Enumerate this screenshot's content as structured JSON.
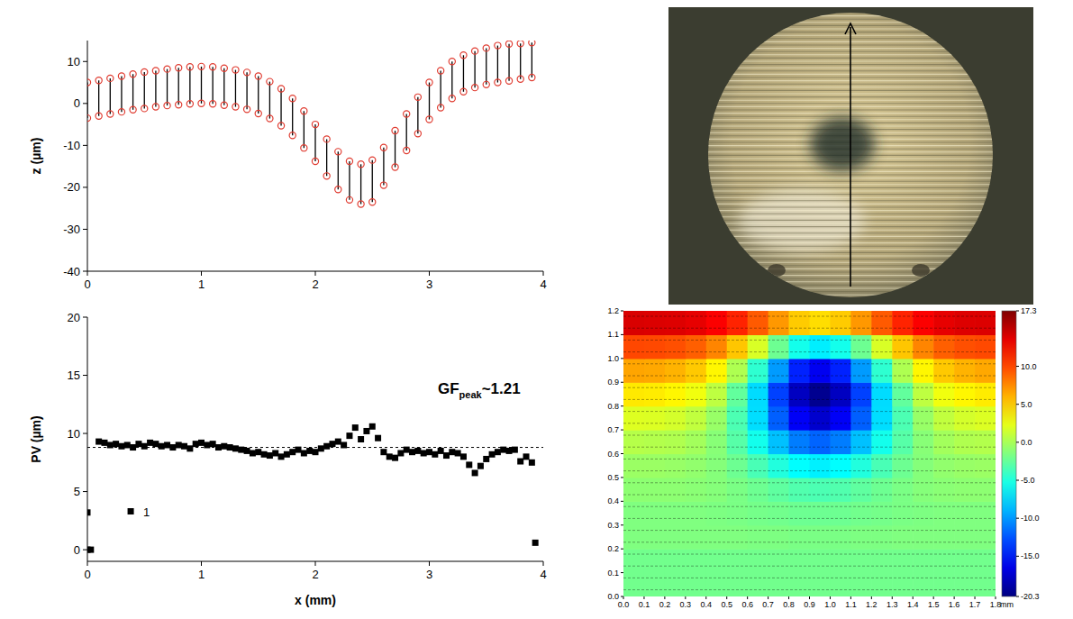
{
  "chart_data": [
    {
      "type": "scatter",
      "color": "#000000",
      "xlim": [
        0,
        4
      ],
      "xticks": [
        0,
        1,
        2,
        3,
        4
      ],
      "ylim": [
        -40,
        15
      ],
      "yticks": [
        -40,
        -30,
        -20,
        -10,
        0,
        10
      ],
      "ylabel": "z (µm)",
      "x": [
        0,
        0.1,
        0.2,
        0.3,
        0.4,
        0.5,
        0.6,
        0.7,
        0.8,
        0.9,
        1,
        1.1,
        1.2,
        1.3,
        1.4,
        1.5,
        1.6,
        1.7,
        1.8,
        1.9,
        2,
        2.1,
        2.2,
        2.3,
        2.4,
        2.5,
        2.6,
        2.7,
        2.8,
        2.9,
        3,
        3.1,
        3.2,
        3.3,
        3.4,
        3.5,
        3.6,
        3.7,
        3.8,
        3.9
      ],
      "series": [
        {
          "color": "#e03c31",
          "marker": "circle",
          "values": [
            5.0,
            5.5,
            6.0,
            6.5,
            7.0,
            7.5,
            7.8,
            8.2,
            8.5,
            8.7,
            8.8,
            8.7,
            8.4,
            8.0,
            7.4,
            6.5,
            5.2,
            3.5,
            1.2,
            -1.8,
            -5.0,
            -8.5,
            -11.5,
            -13.8,
            -14.5,
            -13.5,
            -10.5,
            -6.5,
            -2.5,
            1.5,
            5.0,
            7.8,
            10.0,
            11.5,
            12.5,
            13.2,
            13.8,
            14.2,
            14.3,
            14.5
          ]
        },
        {
          "color": "#e03c31",
          "marker": "circle",
          "values": [
            -3.5,
            -3.0,
            -2.5,
            -2.0,
            -1.5,
            -1.2,
            -0.8,
            -0.5,
            -0.3,
            -0.1,
            0.0,
            -0.1,
            -0.4,
            -0.8,
            -1.4,
            -2.4,
            -3.6,
            -5.3,
            -7.6,
            -10.6,
            -13.8,
            -17.3,
            -20.5,
            -23.0,
            -24.0,
            -23.5,
            -19.5,
            -15.2,
            -11.2,
            -7.2,
            -3.8,
            -1.0,
            1.2,
            2.8,
            3.8,
            4.5,
            5.0,
            5.4,
            5.8,
            6.2
          ]
        }
      ]
    },
    {
      "type": "scatter",
      "xlim": [
        0,
        4
      ],
      "xticks": [
        0,
        1,
        2,
        3,
        4
      ],
      "ylim": [
        -1,
        20
      ],
      "yticks": [
        0,
        5,
        10,
        15,
        20
      ],
      "xlabel": "x (mm)",
      "ylabel": "PV (µm)",
      "reference_line": {
        "value": 8.8,
        "line_style": "dashed"
      },
      "point_label": "1",
      "annotation": {
        "text": "GF",
        "subscript": "peak",
        "suffix": "~1.21"
      },
      "series": [
        {
          "color": "#000000",
          "marker": "square",
          "x": [
            0.1,
            0.15,
            0.2,
            0.25,
            0.3,
            0.35,
            0.4,
            0.45,
            0.5,
            0.55,
            0.6,
            0.65,
            0.7,
            0.75,
            0.8,
            0.85,
            0.9,
            0.95,
            1,
            1.05,
            1.1,
            1.15,
            1.2,
            1.25,
            1.3,
            1.35,
            1.4,
            1.45,
            1.5,
            1.55,
            1.6,
            1.65,
            1.7,
            1.75,
            1.8,
            1.85,
            1.9,
            1.95,
            2,
            2.05,
            2.1,
            2.15,
            2.2,
            2.25,
            2.3,
            2.35,
            2.4,
            2.45,
            2.5,
            2.55,
            2.6,
            2.65,
            2.7,
            2.75,
            2.8,
            2.85,
            2.9,
            2.95,
            3,
            3.05,
            3.1,
            3.15,
            3.2,
            3.25,
            3.3,
            3.35,
            3.4,
            3.45,
            3.5,
            3.55,
            3.6,
            3.65,
            3.7,
            3.75,
            3.8,
            3.85,
            3.9
          ],
          "values": [
            9.3,
            9.2,
            9.0,
            9.1,
            8.9,
            9.0,
            8.8,
            9.1,
            8.9,
            9.2,
            9.1,
            8.9,
            9.0,
            8.8,
            9.0,
            8.9,
            8.7,
            9.1,
            9.2,
            9.0,
            9.1,
            8.8,
            8.9,
            8.8,
            8.7,
            8.6,
            8.5,
            8.3,
            8.4,
            8.2,
            8.1,
            8.3,
            8.0,
            8.2,
            8.4,
            8.6,
            8.3,
            8.5,
            8.4,
            8.7,
            8.9,
            9.1,
            9.3,
            9.0,
            9.8,
            10.5,
            9.5,
            10.2,
            10.6,
            9.6,
            8.4,
            8.0,
            7.9,
            8.3,
            8.6,
            8.4,
            8.5,
            8.3,
            8.4,
            8.2,
            8.5,
            8.1,
            8.4,
            8.3,
            8.0,
            7.3,
            6.6,
            7.2,
            7.8,
            8.2,
            8.4,
            8.6,
            8.5,
            8.6,
            7.6,
            8.0,
            7.5
          ]
        },
        {
          "color": "#000000",
          "marker": "square",
          "x": [
            0,
            0,
            0.03,
            0.38,
            3.93
          ],
          "values": [
            3.2,
            0,
            0,
            3.3,
            0.6
          ]
        }
      ]
    },
    {
      "type": "heatmap",
      "xlim": [
        0,
        1.8
      ],
      "ylim": [
        0,
        1.2
      ],
      "xlabel": "mm",
      "xticks": [
        {
          "value": 0,
          "label": "0.0"
        },
        {
          "value": 0.1,
          "label": "0.1"
        },
        {
          "value": 0.2,
          "label": "0.2"
        },
        {
          "value": 0.3,
          "label": "0.3"
        },
        {
          "value": 0.4,
          "label": "0.4"
        },
        {
          "value": 0.5,
          "label": "0.5"
        },
        {
          "value": 0.6,
          "label": "0.6"
        },
        {
          "value": 0.7,
          "label": "0.7"
        },
        {
          "value": 0.8,
          "label": "0.8"
        },
        {
          "value": 0.9,
          "label": "0.9"
        },
        {
          "value": 1,
          "label": "1.0"
        },
        {
          "value": 1.1,
          "label": "1.1"
        },
        {
          "value": 1.2,
          "label": "1.2"
        },
        {
          "value": 1.3,
          "label": "1.3"
        },
        {
          "value": 1.4,
          "label": "1.4"
        },
        {
          "value": 1.5,
          "label": "1.5"
        },
        {
          "value": 1.6,
          "label": "1.6"
        },
        {
          "value": 1.7,
          "label": "1.7"
        },
        {
          "value": 1.8,
          "label": "1.8"
        }
      ],
      "yticks": [
        {
          "value": 0,
          "label": "0.0"
        },
        {
          "value": 0.1,
          "label": "0.1"
        },
        {
          "value": 0.2,
          "label": "0.2"
        },
        {
          "value": 0.3,
          "label": "0.3"
        },
        {
          "value": 0.4,
          "label": "0.4"
        },
        {
          "value": 0.5,
          "label": "0.5"
        },
        {
          "value": 0.6,
          "label": "0.6"
        },
        {
          "value": 0.7,
          "label": "0.7"
        },
        {
          "value": 0.8,
          "label": "0.8"
        },
        {
          "value": 0.9,
          "label": "0.9"
        },
        {
          "value": 1,
          "label": "1.0"
        },
        {
          "value": 1.1,
          "label": "1.1"
        },
        {
          "value": 1.2,
          "label": "1.2"
        }
      ],
      "cells": [
        [
          -2,
          -2,
          -2,
          -2,
          -2,
          -2,
          -2,
          -2,
          -2,
          -2,
          -2,
          -2,
          -2,
          -2,
          -2,
          -2,
          -2,
          -2
        ],
        [
          -2,
          -2,
          -2,
          -2,
          -2,
          -2,
          -2,
          -2,
          -2,
          -2,
          -2,
          -2,
          -2,
          -2,
          -2,
          -2,
          -2,
          -2
        ],
        [
          -1.5,
          -1.5,
          -1.5,
          -1.5,
          -1.5,
          -1.5,
          -1.6,
          -1.6,
          -1.7,
          -1.7,
          -1.7,
          -1.6,
          -1.6,
          -1.5,
          -1.5,
          -1.5,
          -1.5,
          -1.5
        ],
        [
          -1.5,
          -1.5,
          -1.5,
          -1.5,
          -1.6,
          -1.7,
          -1.9,
          -2.0,
          -2.2,
          -2.2,
          -2.2,
          -2.0,
          -1.9,
          -1.7,
          -1.6,
          -1.5,
          -1.5,
          -1.5
        ],
        [
          -1.0,
          -1.0,
          -1.0,
          -1.1,
          -1.3,
          -1.7,
          -2.2,
          -2.7,
          -3.2,
          -3.4,
          -3.2,
          -2.7,
          -2.2,
          -1.7,
          -1.3,
          -1.1,
          -1.0,
          -1.0
        ],
        [
          -0.5,
          -0.5,
          -0.6,
          -0.8,
          -1.3,
          -2.2,
          -3.5,
          -5.0,
          -6.2,
          -6.7,
          -6.2,
          -5.0,
          -3.5,
          -2.2,
          -1.3,
          -0.8,
          -0.6,
          -0.5
        ],
        [
          0.5,
          0.4,
          0.3,
          -0.2,
          -1.2,
          -3.0,
          -5.5,
          -8.5,
          -11.0,
          -11.9,
          -11.0,
          -8.5,
          -5.5,
          -3.0,
          -1.2,
          -0.2,
          0.3,
          0.4
        ],
        [
          2.0,
          1.9,
          1.6,
          0.9,
          -0.6,
          -3.4,
          -7.4,
          -12.1,
          -15.9,
          -17.4,
          -15.9,
          -12.1,
          -7.4,
          -3.4,
          -0.6,
          0.9,
          1.6,
          1.9
        ],
        [
          4.0,
          3.9,
          3.5,
          2.7,
          0.8,
          -2.6,
          -7.5,
          -13.2,
          -17.9,
          -19.7,
          -17.9,
          -13.2,
          -7.5,
          -2.6,
          0.8,
          2.7,
          3.5,
          3.9
        ],
        [
          6.5,
          6.4,
          6.0,
          5.2,
          3.5,
          0.2,
          -4.5,
          -9.9,
          -14.4,
          -16.1,
          -14.4,
          -9.9,
          -4.5,
          0.2,
          3.5,
          5.2,
          6.0,
          6.4
        ],
        [
          10.0,
          9.9,
          9.7,
          9.1,
          7.7,
          5.3,
          1.8,
          -2.2,
          -5.5,
          -6.8,
          -5.5,
          -2.2,
          1.8,
          5.3,
          7.7,
          9.1,
          9.7,
          9.9
        ],
        [
          14.0,
          13.9,
          13.8,
          13.5,
          12.7,
          11.3,
          9.3,
          7.0,
          5.1,
          4.4,
          5.1,
          7.0,
          9.3,
          11.3,
          12.7,
          13.5,
          13.8,
          13.9
        ]
      ],
      "color_scale": {
        "range": [
          -20.3,
          17.3
        ],
        "ticks": [
          17.3,
          {
            "value": 10,
            "label": "10.0"
          },
          {
            "value": 5,
            "label": "5.0"
          },
          {
            "value": 0,
            "label": "0.0"
          },
          {
            "value": -5,
            "label": "-5.0"
          },
          {
            "value": -10,
            "label": "-10.0"
          },
          {
            "value": -15,
            "label": "-15.0"
          },
          -20.3
        ]
      }
    }
  ]
}
